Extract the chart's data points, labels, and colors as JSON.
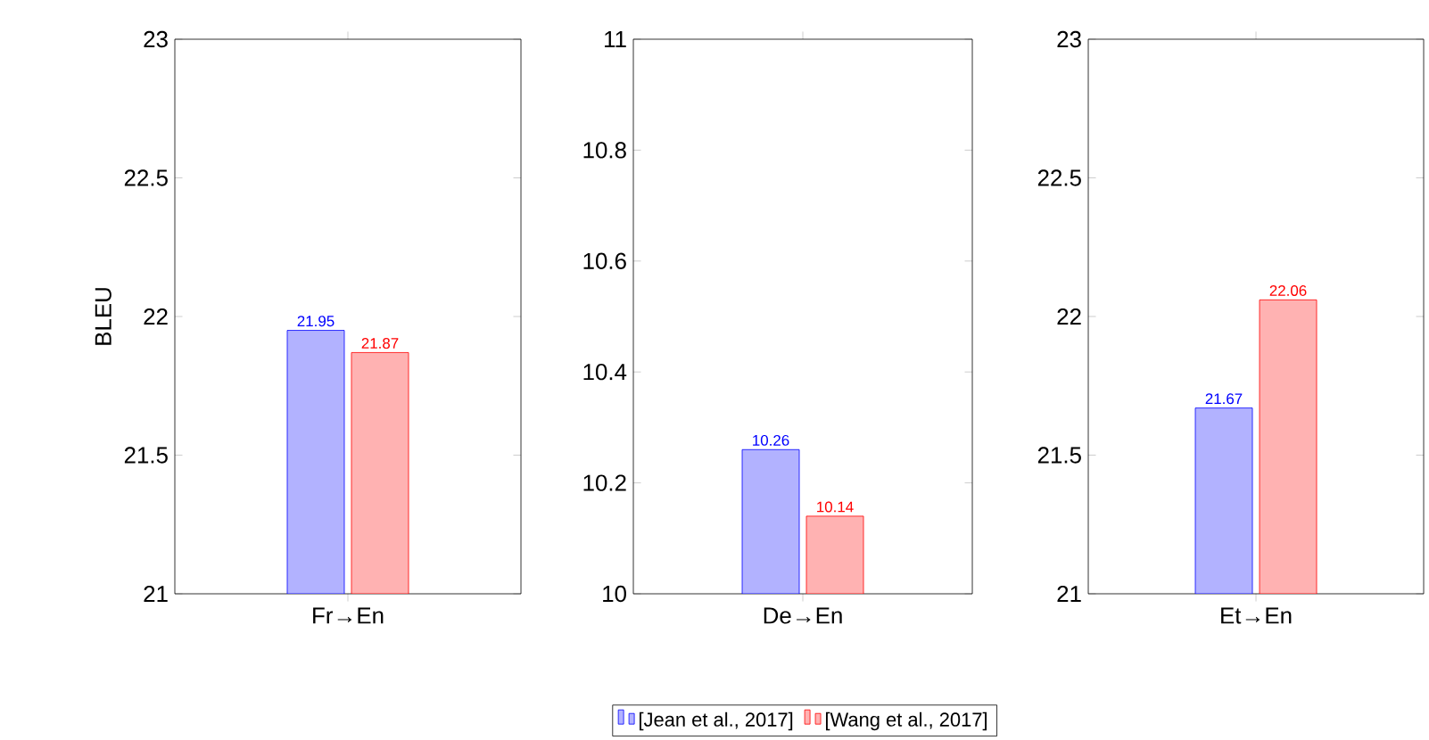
{
  "chart_data": [
    {
      "type": "bar",
      "ylabel": "BLEU",
      "categories": [
        "Fr→En"
      ],
      "ylim": [
        21,
        23
      ],
      "yticks": [
        21,
        21.5,
        22,
        22.5,
        23
      ],
      "data_labels": true,
      "legend": "bottom",
      "series": [
        {
          "name": "[Jean et al., 2017]",
          "color": "#0000ff",
          "values": [
            21.95
          ]
        },
        {
          "name": "[Wang et al., 2017]",
          "color": "#ff0000",
          "values": [
            21.87
          ]
        }
      ]
    },
    {
      "type": "bar",
      "categories": [
        "De→En"
      ],
      "ylim": [
        10,
        11
      ],
      "yticks": [
        10,
        10.2,
        10.4,
        10.6,
        10.8,
        11
      ],
      "data_labels": true,
      "series": [
        {
          "color": "#0000ff",
          "values": [
            10.26
          ]
        },
        {
          "color": "#ff0000",
          "values": [
            10.14
          ]
        }
      ]
    },
    {
      "type": "bar",
      "categories": [
        "Et→En"
      ],
      "ylim": [
        21,
        23
      ],
      "yticks": [
        21,
        21.5,
        22,
        22.5,
        23
      ],
      "data_labels": true,
      "series": [
        {
          "color": "#0000ff",
          "values": [
            21.67
          ]
        },
        {
          "color": "#ff0000",
          "values": [
            22.06
          ]
        }
      ]
    }
  ]
}
